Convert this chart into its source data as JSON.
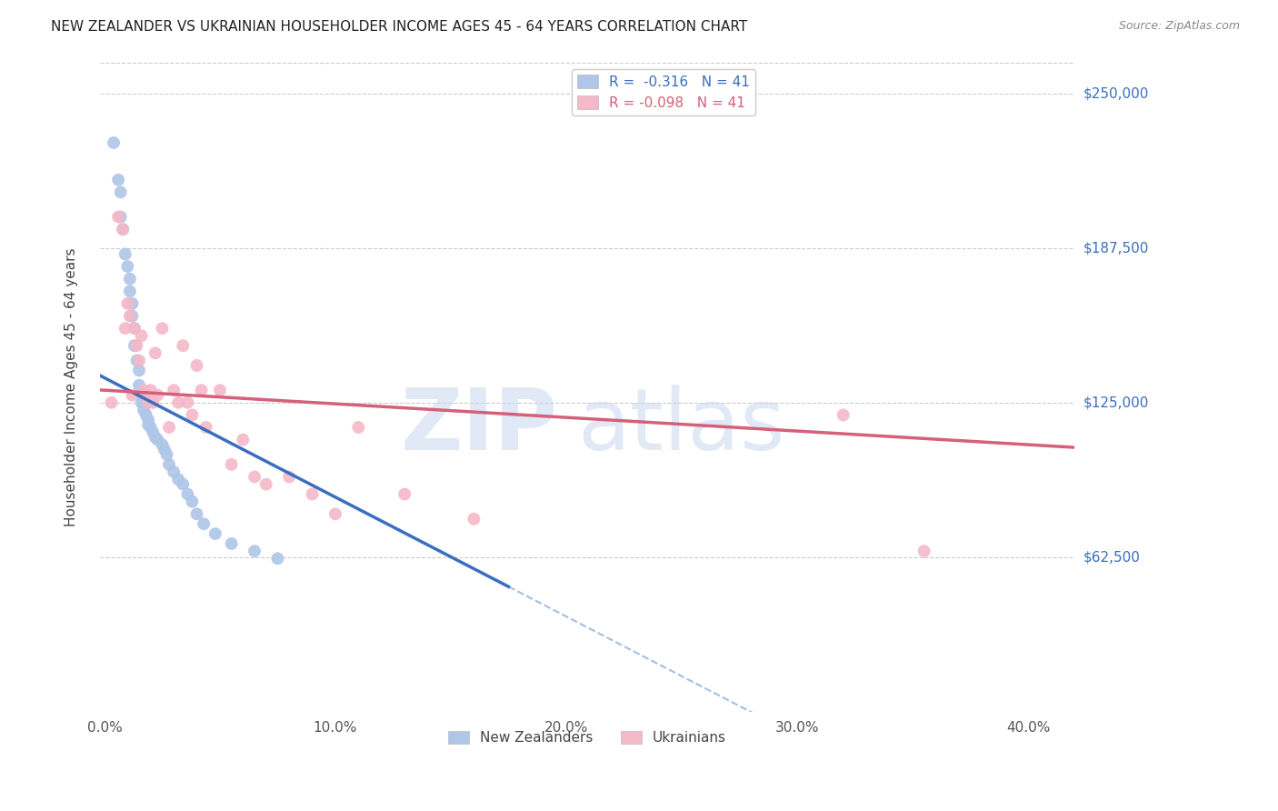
{
  "title": "NEW ZEALANDER VS UKRAINIAN HOUSEHOLDER INCOME AGES 45 - 64 YEARS CORRELATION CHART",
  "source": "Source: ZipAtlas.com",
  "ylabel": "Householder Income Ages 45 - 64 years",
  "xlabel_ticks": [
    "0.0%",
    "10.0%",
    "20.0%",
    "30.0%",
    "40.0%"
  ],
  "xlabel_values": [
    0.0,
    0.1,
    0.2,
    0.3,
    0.4
  ],
  "ytick_labels": [
    "$62,500",
    "$125,000",
    "$187,500",
    "$250,000"
  ],
  "ytick_values": [
    62500,
    125000,
    187500,
    250000
  ],
  "ylim": [
    0,
    262500
  ],
  "xlim": [
    -0.002,
    0.42
  ],
  "R_nz": -0.316,
  "N_nz": 41,
  "R_uk": -0.098,
  "N_uk": 41,
  "legend_label_nz": "New Zealanders",
  "legend_label_uk": "Ukrainians",
  "color_nz": "#aec6e8",
  "color_nz_line": "#3a6fbf",
  "color_uk": "#f4b8c8",
  "color_uk_line": "#d4607a",
  "marker_size": 100,
  "background_color": "#ffffff",
  "grid_color": "#cccccc",
  "watermark_zip": "ZIP",
  "watermark_atlas": "atlas",
  "nz_x": [
    0.004,
    0.006,
    0.007,
    0.007,
    0.008,
    0.009,
    0.01,
    0.011,
    0.011,
    0.012,
    0.012,
    0.013,
    0.013,
    0.014,
    0.015,
    0.015,
    0.016,
    0.016,
    0.017,
    0.018,
    0.019,
    0.019,
    0.02,
    0.021,
    0.022,
    0.023,
    0.025,
    0.026,
    0.027,
    0.028,
    0.03,
    0.032,
    0.034,
    0.036,
    0.038,
    0.04,
    0.043,
    0.048,
    0.055,
    0.065,
    0.075
  ],
  "nz_y": [
    230000,
    215000,
    210000,
    200000,
    195000,
    185000,
    180000,
    175000,
    170000,
    165000,
    160000,
    155000,
    148000,
    142000,
    138000,
    132000,
    128000,
    125000,
    122000,
    120000,
    118000,
    116000,
    115000,
    113000,
    111000,
    110000,
    108000,
    106000,
    104000,
    100000,
    97000,
    94000,
    92000,
    88000,
    85000,
    80000,
    76000,
    72000,
    68000,
    65000,
    62000
  ],
  "uk_x": [
    0.003,
    0.006,
    0.008,
    0.009,
    0.01,
    0.011,
    0.012,
    0.013,
    0.014,
    0.015,
    0.016,
    0.017,
    0.018,
    0.019,
    0.02,
    0.021,
    0.022,
    0.023,
    0.025,
    0.028,
    0.03,
    0.032,
    0.034,
    0.036,
    0.038,
    0.04,
    0.042,
    0.044,
    0.05,
    0.055,
    0.06,
    0.065,
    0.07,
    0.08,
    0.09,
    0.1,
    0.11,
    0.13,
    0.16,
    0.32,
    0.355
  ],
  "uk_y": [
    125000,
    200000,
    195000,
    155000,
    165000,
    160000,
    128000,
    155000,
    148000,
    142000,
    152000,
    130000,
    128000,
    125000,
    130000,
    125000,
    145000,
    128000,
    155000,
    115000,
    130000,
    125000,
    148000,
    125000,
    120000,
    140000,
    130000,
    115000,
    130000,
    100000,
    110000,
    95000,
    92000,
    95000,
    88000,
    80000,
    115000,
    88000,
    78000,
    120000,
    65000
  ]
}
